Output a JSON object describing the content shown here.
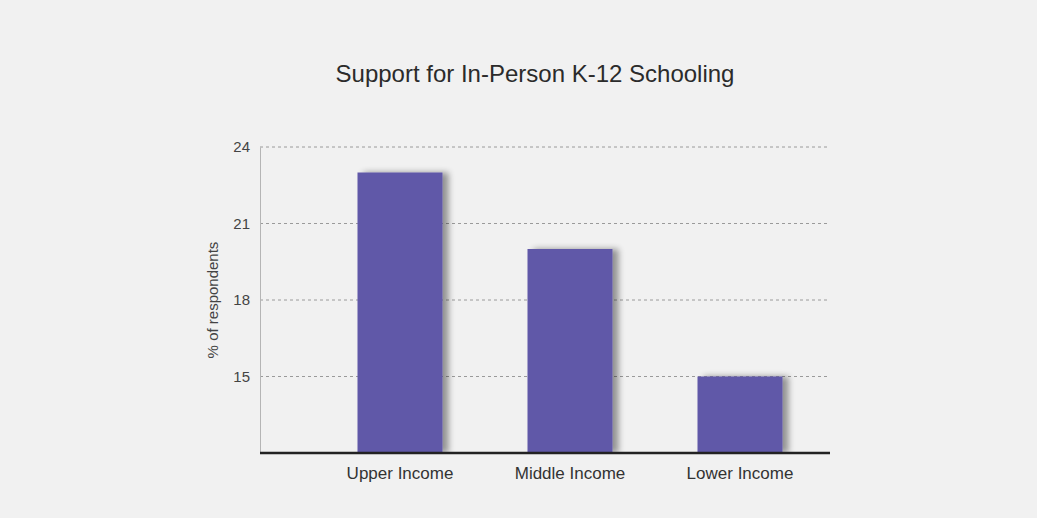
{
  "chart_data": {
    "type": "bar",
    "title": "Support for In-Person K-12 Schooling",
    "ylabel": "% of respondents",
    "categories": [
      "Upper Income",
      "Middle Income",
      "Lower Income"
    ],
    "values": [
      23,
      20,
      15
    ],
    "color": "#6158a8",
    "ylim": [
      12,
      24
    ],
    "yticks": [
      15,
      18,
      21,
      24
    ],
    "grid": true
  }
}
